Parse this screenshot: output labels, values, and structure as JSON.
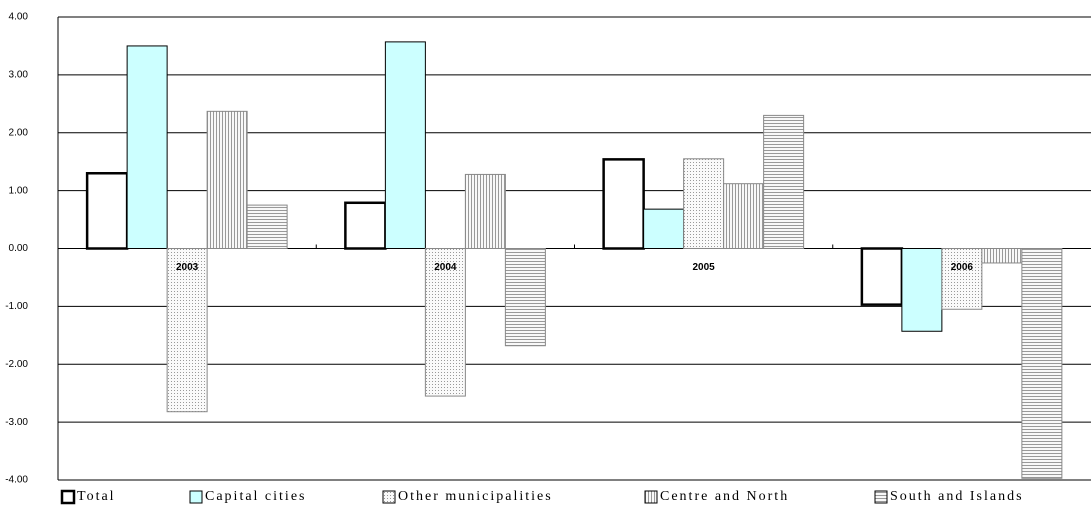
{
  "chart_data": {
    "type": "bar",
    "categories": [
      "2003",
      "2004",
      "2005",
      "2006"
    ],
    "series": [
      {
        "name": "Total",
        "color": "#ffffff",
        "pattern": "none",
        "values": [
          1.3,
          0.79,
          1.54,
          -0.97
        ]
      },
      {
        "name": "Capital cities",
        "color": "#ccffff",
        "pattern": "none",
        "values": [
          3.5,
          3.57,
          0.68,
          -1.43
        ]
      },
      {
        "name": "Other municipalities",
        "color": "#f4f4f4",
        "pattern": "dots",
        "values": [
          -2.82,
          -2.55,
          1.55,
          -1.05
        ]
      },
      {
        "name": "Centre and North",
        "color": "#f4f4f4",
        "pattern": "vertical",
        "values": [
          2.37,
          1.28,
          1.12,
          -0.25
        ]
      },
      {
        "name": "South and Islands",
        "color": "#f4f4f4",
        "pattern": "horizontal",
        "values": [
          0.75,
          -1.68,
          2.3,
          -3.97
        ]
      }
    ],
    "ylim": [
      -4,
      4
    ],
    "yticks": [
      {
        "value": -4,
        "label": "-4.00"
      },
      {
        "value": -3,
        "label": "-3.00"
      },
      {
        "value": -2,
        "label": "-2.00"
      },
      {
        "value": -1,
        "label": "-1.00"
      },
      {
        "value": 0,
        "label": "0.00"
      },
      {
        "value": 1,
        "label": "1.00"
      },
      {
        "value": 2,
        "label": "2.00"
      },
      {
        "value": 3,
        "label": "3.00"
      },
      {
        "value": 4,
        "label": "4.00"
      }
    ],
    "grid": true,
    "legend": "bottom"
  }
}
